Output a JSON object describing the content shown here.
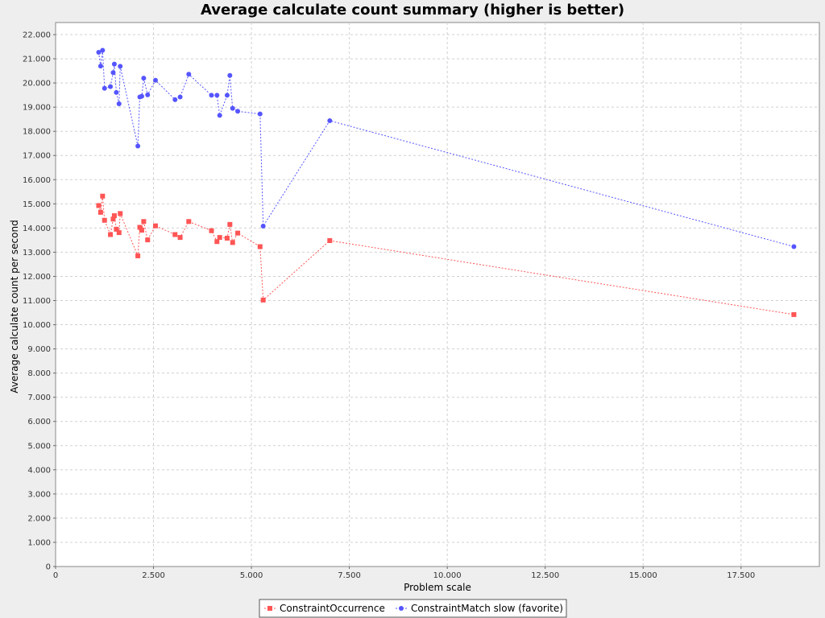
{
  "chart_data": {
    "type": "scatter",
    "title": "Average calculate count summary (higher is better)",
    "xlabel": "Problem scale",
    "ylabel": "Average calculate count per second",
    "xlim": [
      0,
      19500
    ],
    "ylim": [
      0,
      22500
    ],
    "x_ticks": [
      0,
      2500,
      5000,
      7500,
      10000,
      12500,
      15000,
      17500
    ],
    "x_tick_labels": [
      "0",
      "2.500",
      "5.000",
      "7.500",
      "10.000",
      "12.500",
      "15.000",
      "17.500"
    ],
    "y_ticks": [
      0,
      1000,
      2000,
      3000,
      4000,
      5000,
      6000,
      7000,
      8000,
      9000,
      10000,
      11000,
      12000,
      13000,
      14000,
      15000,
      16000,
      17000,
      18000,
      19000,
      20000,
      21000,
      22000
    ],
    "y_tick_labels": [
      "0",
      "1.000",
      "2.000",
      "3.000",
      "4.000",
      "5.000",
      "6.000",
      "7.000",
      "8.000",
      "9.000",
      "10.000",
      "11.000",
      "12.000",
      "13.000",
      "14.000",
      "15.000",
      "16.000",
      "17.000",
      "18.000",
      "19.000",
      "20.000",
      "21.000",
      "22.000"
    ],
    "grid": true,
    "legend_position": "bottom",
    "series": [
      {
        "name": "ConstraintOccurrence",
        "color": "#ff5555",
        "marker": "square",
        "points": [
          [
            1100,
            14930
          ],
          [
            1150,
            14650
          ],
          [
            1200,
            15320
          ],
          [
            1250,
            14320
          ],
          [
            1400,
            13730
          ],
          [
            1470,
            14370
          ],
          [
            1500,
            14510
          ],
          [
            1550,
            13950
          ],
          [
            1620,
            13810
          ],
          [
            1650,
            14600
          ],
          [
            2100,
            12850
          ],
          [
            2150,
            14030
          ],
          [
            2200,
            13910
          ],
          [
            2250,
            14270
          ],
          [
            2350,
            13510
          ],
          [
            2550,
            14090
          ],
          [
            3050,
            13730
          ],
          [
            3180,
            13610
          ],
          [
            3400,
            14270
          ],
          [
            3980,
            13890
          ],
          [
            4120,
            13440
          ],
          [
            4190,
            13610
          ],
          [
            4380,
            13580
          ],
          [
            4450,
            14150
          ],
          [
            4520,
            13400
          ],
          [
            4650,
            13790
          ],
          [
            5220,
            13230
          ],
          [
            5300,
            11020
          ],
          [
            7000,
            13480
          ],
          [
            18850,
            10420
          ]
        ]
      },
      {
        "name": "ConstraintMatch slow (favorite)",
        "color": "#5555ff",
        "marker": "circle",
        "points": [
          [
            1100,
            21270
          ],
          [
            1150,
            20700
          ],
          [
            1200,
            21350
          ],
          [
            1250,
            19780
          ],
          [
            1400,
            19850
          ],
          [
            1470,
            20430
          ],
          [
            1500,
            20780
          ],
          [
            1550,
            19610
          ],
          [
            1620,
            19140
          ],
          [
            1650,
            20690
          ],
          [
            2100,
            17390
          ],
          [
            2150,
            19420
          ],
          [
            2200,
            19450
          ],
          [
            2250,
            20200
          ],
          [
            2350,
            19510
          ],
          [
            2550,
            20110
          ],
          [
            3050,
            19310
          ],
          [
            3180,
            19420
          ],
          [
            3400,
            20360
          ],
          [
            3980,
            19490
          ],
          [
            4120,
            19490
          ],
          [
            4190,
            18660
          ],
          [
            4380,
            19490
          ],
          [
            4450,
            20310
          ],
          [
            4520,
            18950
          ],
          [
            4650,
            18830
          ],
          [
            5220,
            18720
          ],
          [
            5300,
            14080
          ],
          [
            7000,
            18440
          ],
          [
            18850,
            13230
          ]
        ]
      }
    ]
  }
}
